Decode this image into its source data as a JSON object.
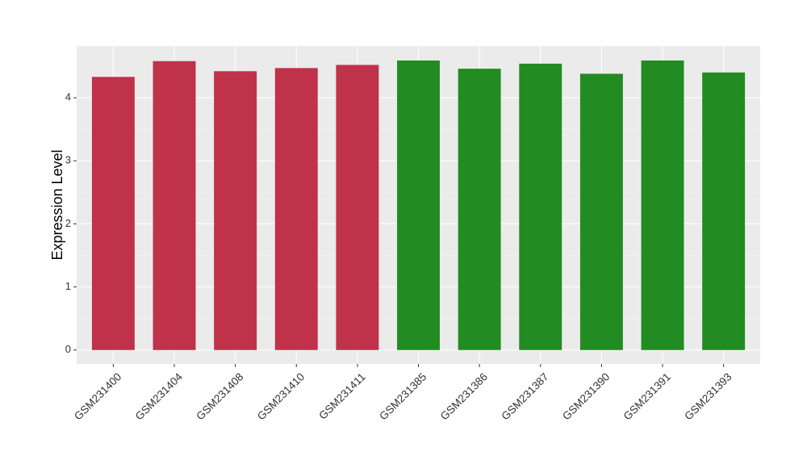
{
  "chart_data": {
    "type": "bar",
    "y_label": "Expression Level",
    "categories": [
      "GSM231400",
      "GSM231404",
      "GSM231408",
      "GSM231410",
      "GSM231411",
      "GSM231385",
      "GSM231386",
      "GSM231387",
      "GSM231390",
      "GSM231391",
      "GSM231393"
    ],
    "values": [
      4.33,
      4.58,
      4.42,
      4.47,
      4.52,
      4.59,
      4.46,
      4.54,
      4.38,
      4.59,
      4.4
    ],
    "colors": [
      "#c0314a",
      "#c0314a",
      "#c0314a",
      "#c0314a",
      "#c0314a",
      "#228b22",
      "#228b22",
      "#228b22",
      "#228b22",
      "#228b22",
      "#228b22"
    ],
    "ylim": [
      -0.22,
      4.82
    ],
    "yticks": [
      0,
      1,
      2,
      3,
      4
    ],
    "grid": true
  }
}
